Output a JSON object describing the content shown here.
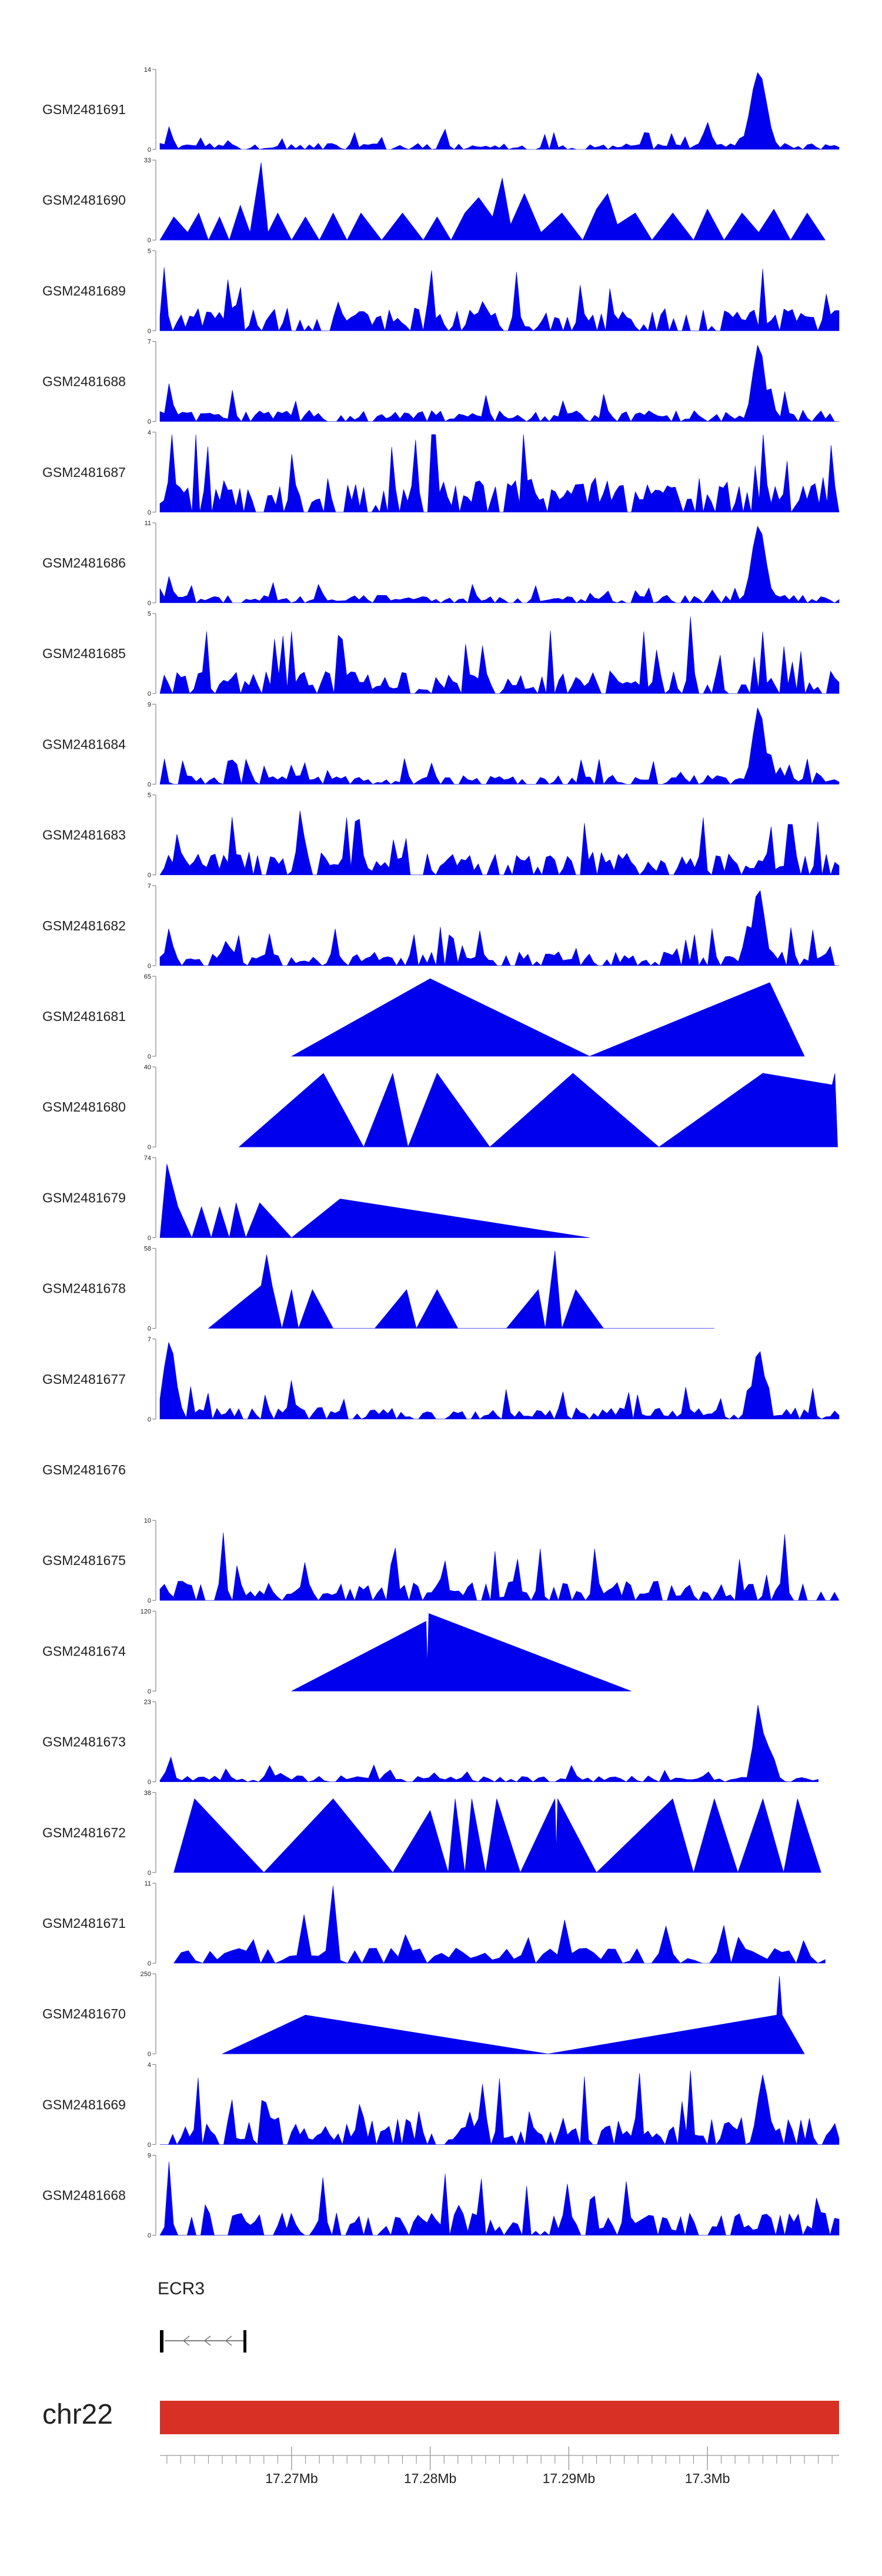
{
  "chart_data": {
    "type": "area",
    "title": "",
    "chromosome": "chr22",
    "xlabel": "",
    "ylabel": "",
    "x_unit": "Mb",
    "xlim": [
      17.2605,
      17.3095
    ],
    "x_ticks": [
      17.27,
      17.28,
      17.29,
      17.3
    ],
    "x_tick_labels": [
      "17.27Mb",
      "17.28Mb",
      "17.29Mb",
      "17.3Mb"
    ],
    "minor_tick_step": 0.001,
    "gene": {
      "name": "ECR3",
      "strand": "-",
      "start": 17.2605,
      "end": 17.2665
    },
    "ideogram_color": "#d93025",
    "series_color": "#0000ee",
    "tracks": [
      {
        "name": "GSM2481691",
        "ymax": 14,
        "kind": "dense",
        "density": 150,
        "base": 0.08,
        "peaks": [
          {
            "x": 17.3037,
            "h": 1.0,
            "w": 0.0008
          },
          {
            "x": 17.3,
            "h": 0.35,
            "w": 0.0004
          },
          {
            "x": 17.2612,
            "h": 0.3,
            "w": 0.0003
          },
          {
            "x": 17.281,
            "h": 0.28,
            "w": 0.0003
          }
        ]
      },
      {
        "name": "GSM2481690",
        "ymax": 33,
        "kind": "tri",
        "start": 17.2605,
        "end": 17.3095,
        "points": [
          [
            17.2605,
            0
          ],
          [
            17.2615,
            0.3
          ],
          [
            17.2625,
            0.1
          ],
          [
            17.2633,
            0.35
          ],
          [
            17.264,
            0
          ],
          [
            17.2648,
            0.3
          ],
          [
            17.2655,
            0
          ],
          [
            17.2663,
            0.45
          ],
          [
            17.267,
            0.1
          ],
          [
            17.2678,
            1.0
          ],
          [
            17.2683,
            0.1
          ],
          [
            17.269,
            0.35
          ],
          [
            17.27,
            0
          ],
          [
            17.271,
            0.3
          ],
          [
            17.272,
            0
          ],
          [
            17.273,
            0.35
          ],
          [
            17.274,
            0
          ],
          [
            17.275,
            0.35
          ],
          [
            17.2765,
            0
          ],
          [
            17.278,
            0.35
          ],
          [
            17.2795,
            0
          ],
          [
            17.2805,
            0.3
          ],
          [
            17.2815,
            0
          ],
          [
            17.2825,
            0.35
          ],
          [
            17.2835,
            0.55
          ],
          [
            17.2845,
            0.3
          ],
          [
            17.2852,
            0.8
          ],
          [
            17.2858,
            0.2
          ],
          [
            17.2868,
            0.6
          ],
          [
            17.288,
            0.1
          ],
          [
            17.2895,
            0.35
          ],
          [
            17.291,
            0
          ],
          [
            17.292,
            0.4
          ],
          [
            17.2928,
            0.6
          ],
          [
            17.2935,
            0.2
          ],
          [
            17.2948,
            0.35
          ],
          [
            17.296,
            0
          ],
          [
            17.2975,
            0.35
          ],
          [
            17.299,
            0
          ],
          [
            17.3,
            0.4
          ],
          [
            17.3012,
            0
          ],
          [
            17.3025,
            0.35
          ],
          [
            17.3037,
            0.1
          ],
          [
            17.3048,
            0.4
          ],
          [
            17.306,
            0
          ],
          [
            17.3072,
            0.35
          ],
          [
            17.3085,
            0
          ]
        ]
      },
      {
        "name": "GSM2481689",
        "ymax": 5,
        "kind": "dense",
        "density": 160,
        "base": 0.3,
        "peaks": [
          {
            "x": 17.28,
            "h": 1.0,
            "w": 0.0002
          },
          {
            "x": 17.2662,
            "h": 0.8,
            "w": 0.0002
          },
          {
            "x": 17.304,
            "h": 0.8,
            "w": 0.0002
          }
        ]
      },
      {
        "name": "GSM2481688",
        "ymax": 7,
        "kind": "dense",
        "density": 150,
        "base": 0.15,
        "peaks": [
          {
            "x": 17.3037,
            "h": 1.0,
            "w": 0.0006
          },
          {
            "x": 17.3045,
            "h": 0.45,
            "w": 0.0004
          },
          {
            "x": 17.2612,
            "h": 0.5,
            "w": 0.0003
          }
        ]
      },
      {
        "name": "GSM2481687",
        "ymax": 4,
        "kind": "dense",
        "density": 170,
        "base": 0.45,
        "peaks": [
          {
            "x": 17.279,
            "h": 1.0,
            "w": 0.0002
          },
          {
            "x": 17.309,
            "h": 1.0,
            "w": 0.0002
          },
          {
            "x": 17.27,
            "h": 0.75,
            "w": 0.0002
          }
        ]
      },
      {
        "name": "GSM2481686",
        "ymax": 11,
        "kind": "dense",
        "density": 150,
        "base": 0.1,
        "peaks": [
          {
            "x": 17.3037,
            "h": 1.0,
            "w": 0.0007
          },
          {
            "x": 17.2612,
            "h": 0.35,
            "w": 0.0003
          },
          {
            "x": 17.272,
            "h": 0.25,
            "w": 0.0003
          }
        ]
      },
      {
        "name": "GSM2481685",
        "ymax": 5,
        "kind": "dense",
        "density": 160,
        "base": 0.3,
        "peaks": [
          {
            "x": 17.2988,
            "h": 1.0,
            "w": 0.0002
          },
          {
            "x": 17.304,
            "h": 0.8,
            "w": 0.0002
          },
          {
            "x": 17.27,
            "h": 0.8,
            "w": 0.0002
          }
        ]
      },
      {
        "name": "GSM2481684",
        "ymax": 9,
        "kind": "dense",
        "density": 150,
        "base": 0.12,
        "peaks": [
          {
            "x": 17.3037,
            "h": 1.0,
            "w": 0.0006
          },
          {
            "x": 17.3045,
            "h": 0.4,
            "w": 0.0004
          },
          {
            "x": 17.27,
            "h": 0.25,
            "w": 0.0003
          }
        ]
      },
      {
        "name": "GSM2481683",
        "ymax": 5,
        "kind": "dense",
        "density": 160,
        "base": 0.3,
        "peaks": [
          {
            "x": 17.306,
            "h": 1.0,
            "w": 0.0002
          },
          {
            "x": 17.3045,
            "h": 0.8,
            "w": 0.0002
          },
          {
            "x": 17.274,
            "h": 0.75,
            "w": 0.0002
          }
        ]
      },
      {
        "name": "GSM2481682",
        "ymax": 7,
        "kind": "dense",
        "density": 155,
        "base": 0.18,
        "peaks": [
          {
            "x": 17.3037,
            "h": 1.0,
            "w": 0.0006
          },
          {
            "x": 17.303,
            "h": 0.55,
            "w": 0.0005
          },
          {
            "x": 17.2612,
            "h": 0.5,
            "w": 0.0003
          }
        ]
      },
      {
        "name": "GSM2481681",
        "ymax": 65,
        "kind": "tri",
        "start": 17.27,
        "end": 17.308,
        "points": [
          [
            17.27,
            0
          ],
          [
            17.28,
            1.0
          ],
          [
            17.2915,
            0
          ],
          [
            17.3045,
            0.95
          ],
          [
            17.307,
            0
          ]
        ]
      },
      {
        "name": "GSM2481680",
        "ymax": 40,
        "kind": "tri",
        "start": 17.266,
        "end": 17.3095,
        "points": [
          [
            17.2662,
            0
          ],
          [
            17.2723,
            0.95
          ],
          [
            17.2752,
            0
          ],
          [
            17.2773,
            0.95
          ],
          [
            17.2784,
            0
          ],
          [
            17.2805,
            0.95
          ],
          [
            17.2843,
            0
          ],
          [
            17.2903,
            0.95
          ],
          [
            17.2965,
            0
          ],
          [
            17.304,
            0.95
          ],
          [
            17.309,
            0.8
          ],
          [
            17.3092,
            0.95
          ],
          [
            17.3094,
            0
          ]
        ]
      },
      {
        "name": "GSM2481679",
        "ymax": 74,
        "kind": "tri",
        "start": 17.2605,
        "end": 17.292,
        "points": [
          [
            17.2605,
            0
          ],
          [
            17.261,
            0.95
          ],
          [
            17.2618,
            0.4
          ],
          [
            17.2628,
            0
          ],
          [
            17.2635,
            0.4
          ],
          [
            17.2642,
            0
          ],
          [
            17.2648,
            0.4
          ],
          [
            17.2655,
            0
          ],
          [
            17.266,
            0.45
          ],
          [
            17.2667,
            0
          ],
          [
            17.2677,
            0.45
          ],
          [
            17.27,
            0
          ],
          [
            17.2735,
            0.5
          ],
          [
            17.2915,
            0
          ]
        ]
      },
      {
        "name": "GSM2481678",
        "ymax": 58,
        "kind": "tri",
        "start": 17.264,
        "end": 17.301,
        "points": [
          [
            17.264,
            0
          ],
          [
            17.2678,
            0.55
          ],
          [
            17.2682,
            0.95
          ],
          [
            17.2686,
            0.55
          ],
          [
            17.2693,
            0
          ],
          [
            17.27,
            0.5
          ],
          [
            17.2705,
            0
          ],
          [
            17.2715,
            0.5
          ],
          [
            17.273,
            0
          ],
          [
            17.276,
            0
          ],
          [
            17.2783,
            0.5
          ],
          [
            17.279,
            0
          ],
          [
            17.2805,
            0.5
          ],
          [
            17.282,
            0
          ],
          [
            17.2855,
            0
          ],
          [
            17.2878,
            0.5
          ],
          [
            17.2883,
            0
          ],
          [
            17.289,
            1.0
          ],
          [
            17.2895,
            0
          ],
          [
            17.2905,
            0.5
          ],
          [
            17.2925,
            0
          ],
          [
            17.296,
            0
          ],
          [
            17.3005,
            0
          ]
        ]
      },
      {
        "name": "GSM2481677",
        "ymax": 7,
        "kind": "dense",
        "density": 155,
        "base": 0.15,
        "peaks": [
          {
            "x": 17.2612,
            "h": 1.0,
            "w": 0.0006
          },
          {
            "x": 17.3037,
            "h": 0.9,
            "w": 0.0006
          },
          {
            "x": 17.27,
            "h": 0.5,
            "w": 0.0003
          }
        ]
      },
      {
        "name": "GSM2481676",
        "ymax": null,
        "kind": "empty"
      },
      {
        "name": "GSM2481675",
        "ymax": 10,
        "kind": "dense",
        "density": 150,
        "base": 0.25,
        "peaks": [
          {
            "x": 17.265,
            "h": 1.0,
            "w": 0.0002
          },
          {
            "x": 17.3055,
            "h": 1.0,
            "w": 0.0002
          },
          {
            "x": 17.281,
            "h": 0.55,
            "w": 0.0003
          }
        ]
      },
      {
        "name": "GSM2481674",
        "ymax": 120,
        "kind": "tri",
        "start": 17.27,
        "end": 17.2945,
        "points": [
          [
            17.27,
            0
          ],
          [
            17.2797,
            0.9
          ],
          [
            17.2798,
            0.35
          ],
          [
            17.2799,
            1.0
          ],
          [
            17.2945,
            0
          ]
        ]
      },
      {
        "name": "GSM2481673",
        "ymax": 23,
        "kind": "dense",
        "density": 120,
        "base": 0.08,
        "end": 17.308,
        "peaks": [
          {
            "x": 17.3037,
            "h": 1.0,
            "w": 0.0005
          },
          {
            "x": 17.3045,
            "h": 0.45,
            "w": 0.0005
          },
          {
            "x": 17.2612,
            "h": 0.35,
            "w": 0.0003
          }
        ]
      },
      {
        "name": "GSM2481672",
        "ymax": 38,
        "kind": "tri",
        "start": 17.2615,
        "end": 17.3082,
        "points": [
          [
            17.2615,
            0
          ],
          [
            17.263,
            0.95
          ],
          [
            17.268,
            0
          ],
          [
            17.273,
            0.95
          ],
          [
            17.2773,
            0
          ],
          [
            17.28,
            0.8
          ],
          [
            17.2813,
            0
          ],
          [
            17.2818,
            0.95
          ],
          [
            17.2825,
            0
          ],
          [
            17.283,
            0.95
          ],
          [
            17.284,
            0
          ],
          [
            17.2848,
            0.95
          ],
          [
            17.2865,
            0
          ],
          [
            17.289,
            0.95
          ],
          [
            17.2891,
            0.3
          ],
          [
            17.2892,
            0.95
          ],
          [
            17.292,
            0
          ],
          [
            17.2975,
            0.95
          ],
          [
            17.299,
            0
          ],
          [
            17.3005,
            0.95
          ],
          [
            17.3022,
            0
          ],
          [
            17.304,
            0.95
          ],
          [
            17.3055,
            0
          ],
          [
            17.3065,
            0.95
          ],
          [
            17.3082,
            0
          ]
        ]
      },
      {
        "name": "GSM2481671",
        "ymax": 11,
        "kind": "mixed",
        "start": 17.2615,
        "end": 17.3085,
        "density": 90,
        "base": 0.2,
        "peaks": [
          {
            "x": 17.273,
            "h": 1.0,
            "w": 0.0002
          },
          {
            "x": 17.279,
            "h": 0.95,
            "w": 0.0002
          },
          {
            "x": 17.271,
            "h": 0.7,
            "w": 0.0003
          }
        ]
      },
      {
        "name": "GSM2481670",
        "ymax": 250,
        "kind": "tri",
        "start": 17.265,
        "end": 17.308,
        "points": [
          [
            17.265,
            0
          ],
          [
            17.271,
            0.5
          ],
          [
            17.2885,
            0
          ],
          [
            17.305,
            0.5
          ],
          [
            17.3052,
            1.0
          ],
          [
            17.3054,
            0.5
          ],
          [
            17.307,
            0
          ]
        ]
      },
      {
        "name": "GSM2481669",
        "ymax": 4,
        "kind": "dense",
        "density": 160,
        "base": 0.35,
        "peaks": [
          {
            "x": 17.268,
            "h": 1.0,
            "w": 0.0002
          },
          {
            "x": 17.304,
            "h": 0.9,
            "w": 0.0005
          },
          {
            "x": 17.285,
            "h": 0.85,
            "w": 0.0002
          }
        ]
      },
      {
        "name": "GSM2481668",
        "ymax": 9,
        "kind": "dense",
        "density": 150,
        "base": 0.3,
        "peaks": [
          {
            "x": 17.2612,
            "h": 1.0,
            "w": 0.0002
          },
          {
            "x": 17.29,
            "h": 0.85,
            "w": 0.0002
          },
          {
            "x": 17.308,
            "h": 0.75,
            "w": 0.0002
          }
        ]
      }
    ]
  }
}
